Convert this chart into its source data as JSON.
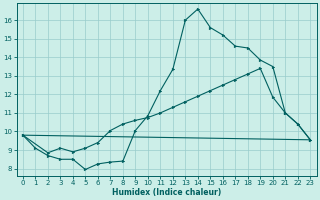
{
  "xlabel": "Humidex (Indice chaleur)",
  "bg_color": "#cceee8",
  "grid_color": "#99cccc",
  "line_color": "#006060",
  "xlim": [
    -0.5,
    23.5
  ],
  "ylim": [
    7.6,
    16.9
  ],
  "xticks": [
    0,
    1,
    2,
    3,
    4,
    5,
    6,
    7,
    8,
    9,
    10,
    11,
    12,
    13,
    14,
    15,
    16,
    17,
    18,
    19,
    20,
    21,
    22,
    23
  ],
  "yticks": [
    8,
    9,
    10,
    11,
    12,
    13,
    14,
    15,
    16
  ],
  "curve1_x": [
    0,
    1,
    2,
    3,
    4,
    5,
    6,
    7,
    8,
    9,
    10,
    11,
    12,
    13,
    14,
    15,
    16,
    17,
    18,
    19,
    20,
    21,
    22,
    23
  ],
  "curve1_y": [
    9.8,
    9.1,
    8.7,
    8.5,
    8.5,
    7.95,
    8.25,
    8.35,
    8.4,
    10.05,
    10.85,
    12.2,
    13.35,
    16.0,
    16.6,
    15.6,
    15.2,
    14.6,
    14.5,
    13.85,
    13.5,
    11.0,
    10.4,
    9.55
  ],
  "curve2_x": [
    0,
    2,
    3,
    4,
    5,
    6,
    7,
    8,
    9,
    10,
    11,
    12,
    13,
    14,
    15,
    16,
    17,
    18,
    19,
    20,
    21,
    22,
    23
  ],
  "curve2_y": [
    9.8,
    8.85,
    9.1,
    8.9,
    9.1,
    9.4,
    10.05,
    10.4,
    10.6,
    10.75,
    11.0,
    11.3,
    11.6,
    11.9,
    12.2,
    12.5,
    12.8,
    13.1,
    13.4,
    11.85,
    11.0,
    10.4,
    9.55
  ],
  "curve3_x": [
    0,
    23
  ],
  "curve3_y": [
    9.8,
    9.55
  ]
}
